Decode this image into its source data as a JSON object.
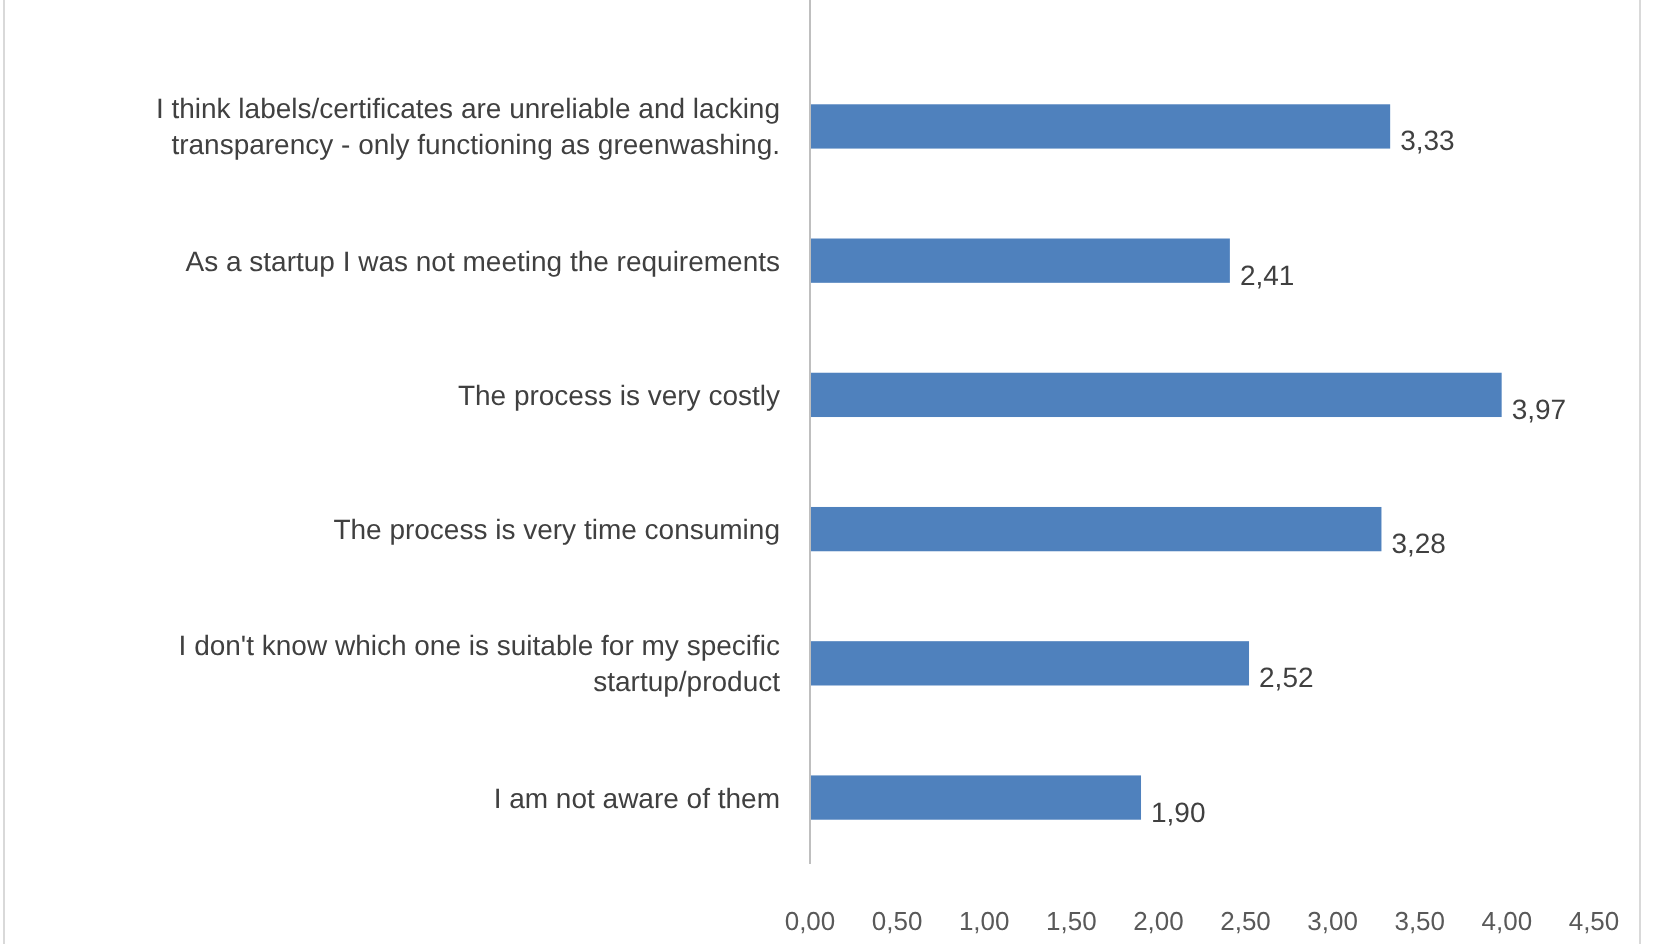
{
  "chart_data": {
    "type": "bar",
    "orientation": "horizontal",
    "categories": [
      "I think labels/certificates are unreliable and lacking transparency - only functioning as greenwashing.",
      "As a startup I was not meeting the requirements",
      "The process is very costly",
      "The process is very time consuming",
      "I don't know which one is suitable for my specific startup/product",
      "I am not aware of them"
    ],
    "values": [
      3.33,
      2.41,
      3.97,
      3.28,
      2.52,
      1.9
    ],
    "value_labels": [
      "3,33",
      "2,41",
      "3,97",
      "3,28",
      "2,52",
      "1,90"
    ],
    "color": "#4f81bd",
    "xlim": [
      0,
      4.5
    ],
    "xticks": [
      {
        "value": 0,
        "label": "0,00"
      },
      {
        "value": 0.5,
        "label": "0,50"
      },
      {
        "value": 1,
        "label": "1,00"
      },
      {
        "value": 1.5,
        "label": "1,50"
      },
      {
        "value": 2,
        "label": "2,00"
      },
      {
        "value": 2.5,
        "label": "2,50"
      },
      {
        "value": 3,
        "label": "3,00"
      },
      {
        "value": 3.5,
        "label": "3,50"
      },
      {
        "value": 4,
        "label": "4,00"
      },
      {
        "value": 4.5,
        "label": "4,50"
      }
    ],
    "grid": false
  }
}
